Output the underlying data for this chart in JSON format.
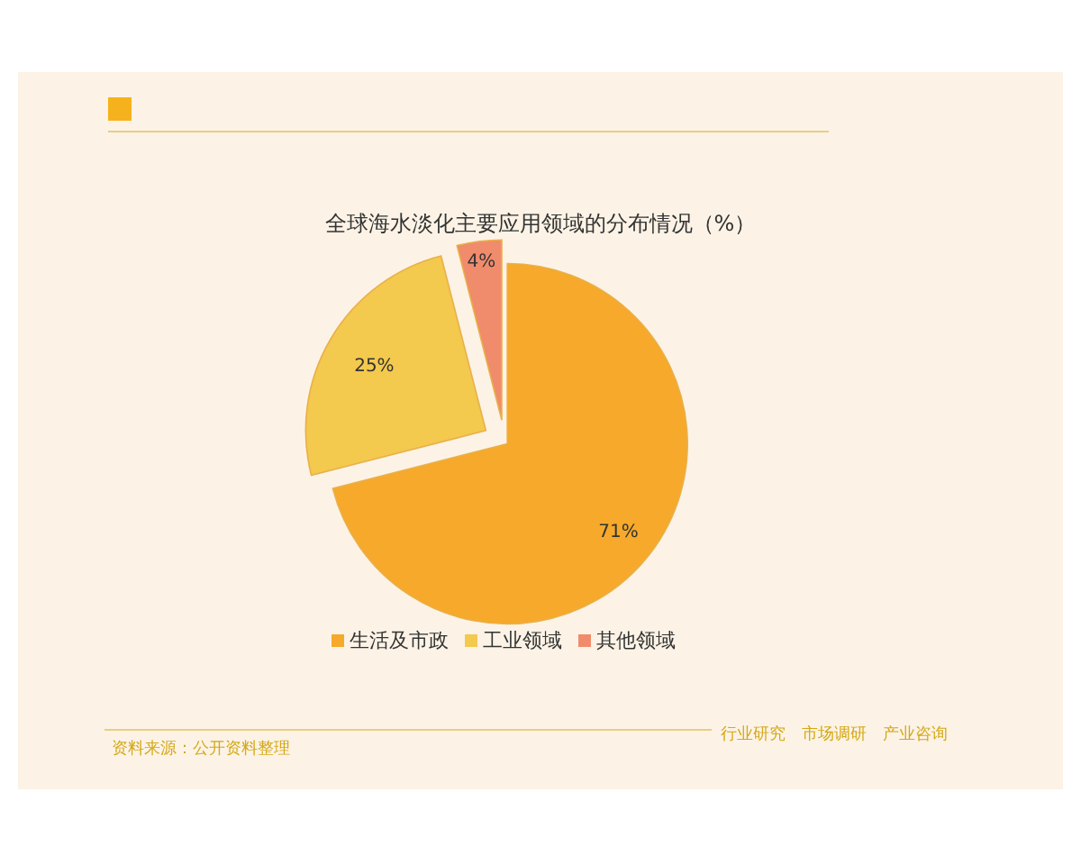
{
  "chart_data": {
    "type": "pie",
    "title": "全球海水淡化主要应用领域的分布情况（%）",
    "categories": [
      "生活及市政",
      "工业领域",
      "其他领域"
    ],
    "values": [
      71,
      25,
      4
    ],
    "value_labels": [
      "71%",
      "25%",
      "4%"
    ],
    "colors": [
      "#f6a92a",
      "#f3c94e",
      "#f08b6c"
    ],
    "legend": "bottom",
    "annotations": [
      "资料来源：公开资料整理",
      "行业研究　市场调研　产业咨询"
    ]
  }
}
